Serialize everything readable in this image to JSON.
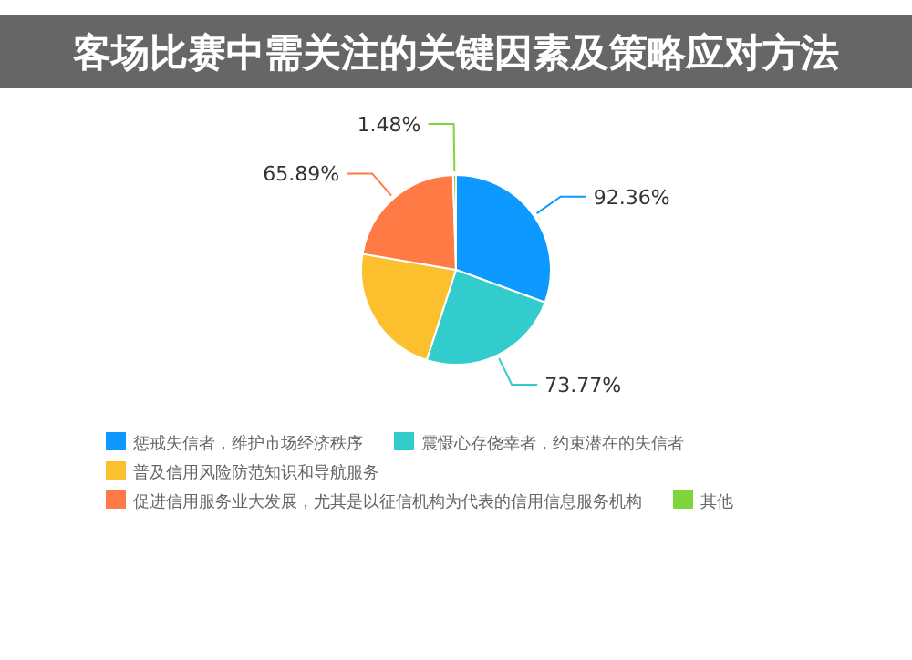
{
  "chart_data": {
    "type": "pie",
    "title": "客场比赛中需关注的关键因素及策略应对方法",
    "categories": [
      "惩戒失信者，维护市场经济秩序",
      "震慑心存侥幸者，约束潜在的失信者",
      "普及信用风险防范知识和导航服务",
      "促进信用服务业大发展，尤其是以征信机构为代表的信用信息服务机构",
      "其他"
    ],
    "values": [
      92.36,
      73.77,
      68.5,
      65.89,
      1.48
    ],
    "value_labels": [
      "92.36%",
      "73.77%",
      null,
      "65.89%",
      "1.48%"
    ],
    "colors": [
      "#0d99ff",
      "#33cccc",
      "#fcc02e",
      "#ff7a45",
      "#7ed63c"
    ],
    "legend": "bottom"
  }
}
